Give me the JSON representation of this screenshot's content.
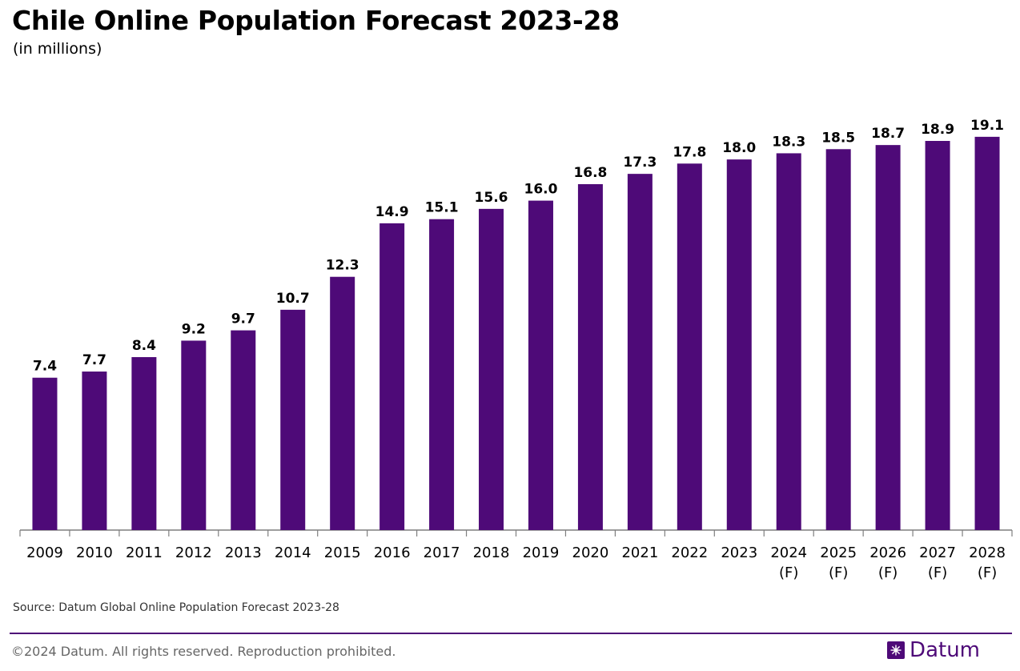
{
  "header": {
    "title": "Chile Online Population Forecast 2023-28",
    "subtitle": "(in millions)"
  },
  "footer": {
    "source": "Source: Datum Global Online Population Forecast 2023-28",
    "copyright": "©2024 Datum. All rights reserved. Reproduction prohibited.",
    "brand": "Datum"
  },
  "colors": {
    "bar": "#4e0a78",
    "accent": "#4e0a78"
  },
  "chart_data": {
    "type": "bar",
    "title": "Chile Online Population Forecast 2023-28",
    "subtitle": "(in millions)",
    "xlabel": "",
    "ylabel": "",
    "ylim": [
      0,
      21
    ],
    "grid": false,
    "categories": [
      [
        "2009"
      ],
      [
        "2010"
      ],
      [
        "2011"
      ],
      [
        "2012"
      ],
      [
        "2013"
      ],
      [
        "2014"
      ],
      [
        "2015"
      ],
      [
        "2016"
      ],
      [
        "2017"
      ],
      [
        "2018"
      ],
      [
        "2019"
      ],
      [
        "2020"
      ],
      [
        "2021"
      ],
      [
        "2022"
      ],
      [
        "2023"
      ],
      [
        "2024",
        "(F)"
      ],
      [
        "2025",
        "(F)"
      ],
      [
        "2026",
        "(F)"
      ],
      [
        "2027",
        "(F)"
      ],
      [
        "2028",
        "(F)"
      ]
    ],
    "values": [
      7.4,
      7.7,
      8.4,
      9.2,
      9.7,
      10.7,
      12.3,
      14.9,
      15.1,
      15.6,
      16.0,
      16.8,
      17.3,
      17.8,
      18.0,
      18.3,
      18.5,
      18.7,
      18.9,
      19.1
    ],
    "value_labels": [
      "7.4",
      "7.7",
      "8.4",
      "9.2",
      "9.7",
      "10.7",
      "12.3",
      "14.9",
      "15.1",
      "15.6",
      "16.0",
      "16.8",
      "17.3",
      "17.8",
      "18.0",
      "18.3",
      "18.5",
      "18.7",
      "18.9",
      "19.1"
    ]
  }
}
